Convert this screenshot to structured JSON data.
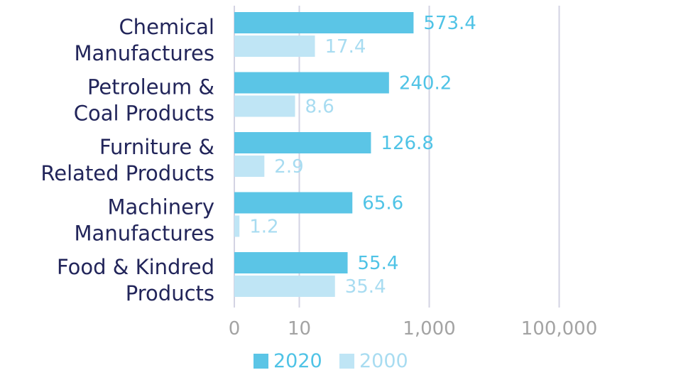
{
  "chart_data": {
    "type": "bar",
    "orientation": "horizontal",
    "x_scale": "log",
    "categories": [
      [
        "Chemical",
        "Manufactures"
      ],
      [
        "Petroleum &",
        "Coal Products"
      ],
      [
        "Furniture &",
        "Related Products"
      ],
      [
        "Machinery",
        "Manufactures"
      ],
      [
        "Food & Kindred",
        "Products"
      ]
    ],
    "series": [
      {
        "name": "2020",
        "color": "#5bc5e6",
        "values": [
          573.4,
          240.2,
          126.8,
          65.6,
          55.4
        ],
        "labels": [
          "573.4",
          "240.2",
          "126.8",
          "65.6",
          "55.4"
        ]
      },
      {
        "name": "2000",
        "color": "#bfe5f5",
        "values": [
          17.4,
          8.6,
          2.9,
          1.2,
          35.4
        ],
        "labels": [
          "17.4",
          "8.6",
          "2.9",
          "1.2",
          "35.4"
        ]
      }
    ],
    "x_ticks": [
      1,
      10,
      1000,
      100000
    ],
    "x_tick_labels": [
      "0",
      "10",
      "1,000",
      "100,000"
    ],
    "xlim": [
      1,
      100000
    ],
    "grid": true,
    "legend_position": "bottom",
    "gridline_color": "#d3d3e3",
    "label_color_2020": "#4fc3e6",
    "label_color_2000": "#a8dcf1",
    "category_label_color": "#22255a",
    "tick_label_color": "#a3a3a3"
  }
}
